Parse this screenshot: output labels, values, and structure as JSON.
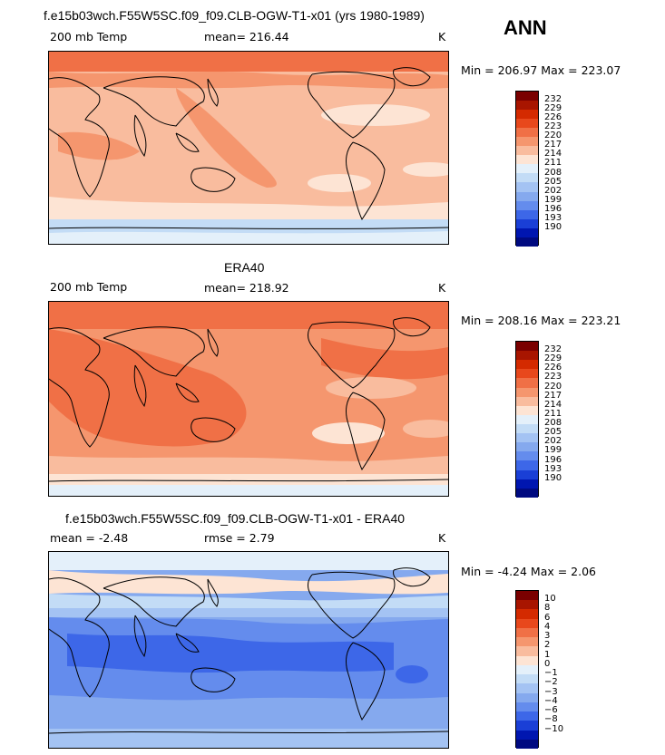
{
  "season": "ANN",
  "colors": {
    "temp": [
      "#7a0000",
      "#a81500",
      "#d42a00",
      "#e8481c",
      "#f07046",
      "#f5966e",
      "#f9bc9e",
      "#fde4d4",
      "#e4f0fa",
      "#c3dcf6",
      "#a4c3f3",
      "#85a9ee",
      "#648ced",
      "#3d67e8",
      "#1a3fd6",
      "#0016b0",
      "#000a80"
    ],
    "diff": [
      "#7a0000",
      "#a81500",
      "#d42a00",
      "#e8481c",
      "#f07046",
      "#f5966e",
      "#f9bc9e",
      "#fde4d4",
      "#e4f0fa",
      "#c3dcf6",
      "#a4c3f3",
      "#85a9ee",
      "#648ced",
      "#3d67e8",
      "#1a3fd6",
      "#0016b0",
      "#000a80"
    ]
  },
  "panels": [
    {
      "title": "f.e15b03wch.F55W5SC.f09_f09.CLB-OGW-T1-x01 (yrs 1980-1989)",
      "left_label": "200 mb Temp",
      "center_label": "mean= 216.44",
      "units": "K",
      "minmax": "Min = 206.97 Max = 223.07",
      "ticks": [
        "232",
        "229",
        "226",
        "223",
        "220",
        "217",
        "214",
        "211",
        "208",
        "205",
        "202",
        "199",
        "196",
        "193",
        "190"
      ]
    },
    {
      "title": "ERA40",
      "left_label": "200 mb Temp",
      "center_label": "mean= 218.92",
      "units": "K",
      "minmax": "Min = 208.16 Max = 223.21",
      "ticks": [
        "232",
        "229",
        "226",
        "223",
        "220",
        "217",
        "214",
        "211",
        "208",
        "205",
        "202",
        "199",
        "196",
        "193",
        "190"
      ]
    },
    {
      "title": "f.e15b03wch.F55W5SC.f09_f09.CLB-OGW-T1-x01 - ERA40",
      "left_label": "mean =   -2.48",
      "center_label": "rmse =    2.79",
      "units": "K",
      "minmax": "Min =   -4.24 Max =     2.06",
      "ticks": [
        "10",
        "8",
        "6",
        "4",
        "3",
        "2",
        "1",
        "0",
        "−1",
        "−2",
        "−3",
        "−4",
        "−6",
        "−8",
        "−10"
      ]
    }
  ]
}
